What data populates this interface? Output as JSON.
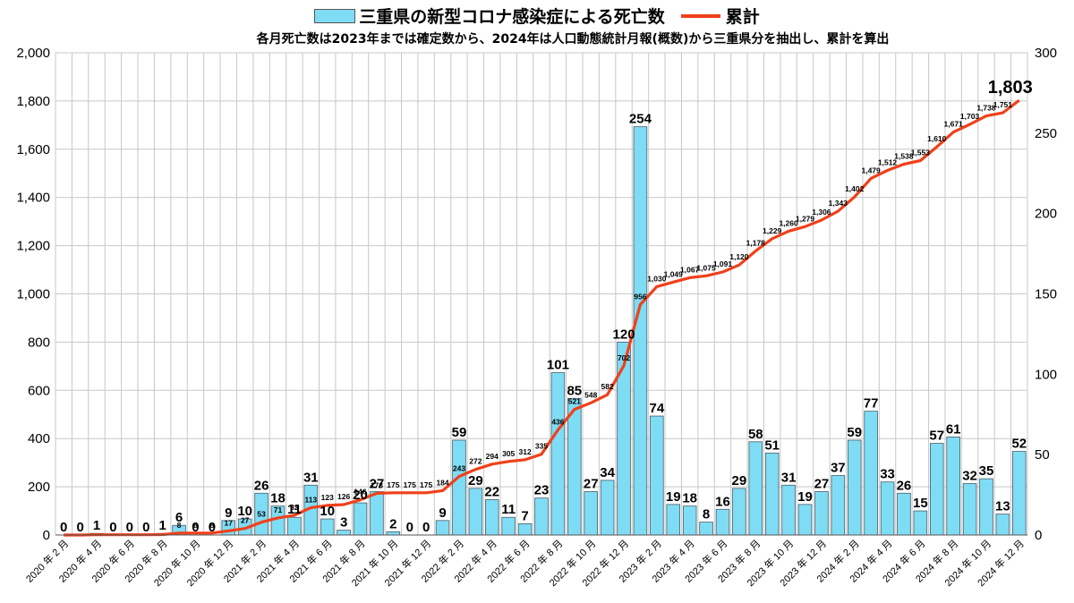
{
  "legend": {
    "bar_label": "三重県の新型コロナ感染症による死亡数",
    "line_label": "累計"
  },
  "subtitle": "各月死亡数は2023年までは確定数から、2024年は人口動態統計月報(概数)から三重県分を抽出し、累計を算出",
  "colors": {
    "bar": "#7fdcf5",
    "bar_border": "#4a5a66",
    "line": "#f0401a",
    "grid": "#c8c8c8"
  },
  "chart_data": {
    "type": "bar",
    "categories": [
      "2020年2月",
      "2020年3月",
      "2020年4月",
      "2020年5月",
      "2020年6月",
      "2020年7月",
      "2020年8月",
      "2020年9月",
      "2020年10月",
      "2020年11月",
      "2020年12月",
      "2021年1月",
      "2021年2月",
      "2021年3月",
      "2021年4月",
      "2021年5月",
      "2021年6月",
      "2021年7月",
      "2021年8月",
      "2021年9月",
      "2021年10月",
      "2021年11月",
      "2021年12月",
      "2022年1月",
      "2022年2月",
      "2022年3月",
      "2022年4月",
      "2022年5月",
      "2022年6月",
      "2022年7月",
      "2022年8月",
      "2022年9月",
      "2022年10月",
      "2022年11月",
      "2022年12月",
      "2023年1月",
      "2023年2月",
      "2023年3月",
      "2023年4月",
      "2023年5月",
      "2023年6月",
      "2023年7月",
      "2023年8月",
      "2023年9月",
      "2023年10月",
      "2023年11月",
      "2023年12月",
      "2024年1月",
      "2024年2月",
      "2024年3月",
      "2024年4月",
      "2024年5月",
      "2024年6月",
      "2024年7月",
      "2024年8月",
      "2024年9月",
      "2024年10月",
      "2024年11月",
      "2024年12月"
    ],
    "x_tick_labels": [
      "2020 年 2 月",
      "2020 年 4 月",
      "2020 年 6 月",
      "2020 年 8 月",
      "2020 年 10 月",
      "2020 年 12 月",
      "2021 年 2 月",
      "2021 年 4 月",
      "2021 年 6 月",
      "2021 年 8 月",
      "2021 年 10 月",
      "2021 年 12 月",
      "2022 年 2 月",
      "2022 年 4 月",
      "2022 年 6 月",
      "2022 年 8 月",
      "2022 年 10 月",
      "2022 年 12 月",
      "2023 年 2 月",
      "2023 年 4 月",
      "2023 年 6 月",
      "2023 年 8 月",
      "2023 年 10 月",
      "2023 年 12 月",
      "2024 年 2 月",
      "2024 年 4 月",
      "2024 年 6 月",
      "2024 年 8 月",
      "2024 年 10 月",
      "2024 年 12 月"
    ],
    "series": [
      {
        "name": "三重県の新型コロナ感染症による死亡数",
        "type": "bar",
        "axis": "right",
        "values": [
          0,
          0,
          1,
          0,
          0,
          0,
          1,
          6,
          0,
          0,
          9,
          10,
          26,
          18,
          11,
          31,
          10,
          3,
          20,
          27,
          2,
          0,
          0,
          9,
          59,
          29,
          22,
          11,
          7,
          23,
          101,
          85,
          27,
          34,
          120,
          254,
          74,
          19,
          18,
          8,
          16,
          29,
          58,
          51,
          31,
          19,
          27,
          37,
          59,
          77,
          33,
          26,
          15,
          57,
          61,
          32,
          35,
          13,
          52
        ]
      },
      {
        "name": "累計",
        "type": "line",
        "axis": "left",
        "values": [
          0,
          0,
          1,
          1,
          1,
          1,
          2,
          8,
          8,
          8,
          17,
          27,
          53,
          71,
          82,
          113,
          123,
          126,
          146,
          173,
          175,
          175,
          175,
          184,
          243,
          272,
          294,
          305,
          312,
          335,
          436,
          521,
          548,
          582,
          702,
          956,
          1030,
          1049,
          1067,
          1075,
          1091,
          1120,
          1178,
          1229,
          1260,
          1279,
          1306,
          1343,
          1402,
          1479,
          1512,
          1538,
          1553,
          1610,
          1671,
          1703,
          1738,
          1751,
          1803
        ]
      }
    ],
    "left_axis": {
      "ylim": [
        0,
        2000
      ],
      "ticks": [
        "0",
        "200",
        "400",
        "600",
        "800",
        "1,000",
        "1,200",
        "1,400",
        "1,600",
        "1,800",
        "2,000"
      ]
    },
    "right_axis": {
      "ylim": [
        0,
        300
      ],
      "ticks": [
        "0",
        "50",
        "100",
        "150",
        "200",
        "250",
        "300"
      ]
    },
    "final_total_label": "1,803",
    "grid": true,
    "legend_position": "top"
  }
}
